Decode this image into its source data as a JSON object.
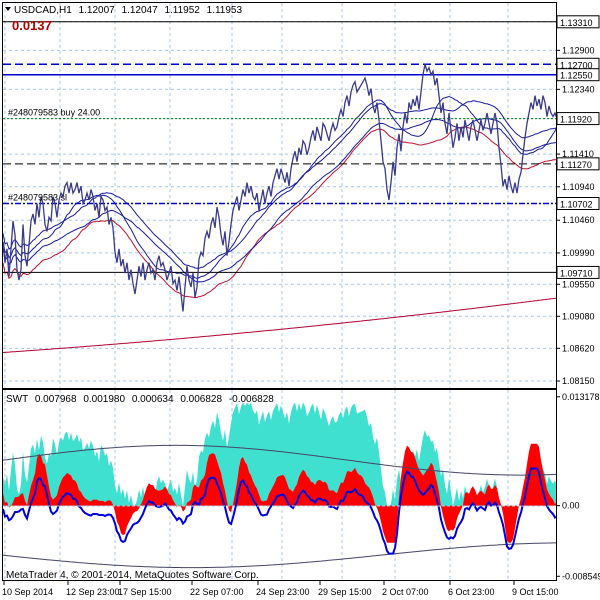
{
  "chart_data": [
    {
      "type": "line",
      "pane": "price",
      "header": {
        "symbol": "USDCAD,H1",
        "ohlc": [
          "1.12007",
          "1.12047",
          "1.11952",
          "1.11953"
        ]
      },
      "spread_label": "0.0137",
      "ylim": [
        1.0805,
        1.1358
      ],
      "yticks": [
        1.1331,
        1.129,
        1.1234,
        1.1192,
        1.1141,
        1.1094,
        1.1046,
        1.0999,
        1.0954,
        1.0908,
        1.0862,
        1.0815
      ],
      "ytick_labels": [
        "",
        "1.12900",
        "1.12340",
        "",
        "1.11410",
        "1.10940",
        "1.10460",
        "1.09990",
        "1.09550",
        "1.09080",
        "1.08620",
        "1.08150"
      ],
      "price_series": [
        [
          0,
          1.1015
        ],
        [
          2,
          1.0985
        ],
        [
          4,
          1.1005
        ],
        [
          6,
          1.0965
        ],
        [
          8,
          1.1005
        ],
        [
          10,
          1.1045
        ],
        [
          12,
          1.1025
        ],
        [
          14,
          1.0975
        ],
        [
          16,
          1.096
        ],
        [
          18,
          1.0975
        ],
        [
          20,
          1.104
        ],
        [
          22,
          1.0995
        ],
        [
          24,
          1.098
        ],
        [
          26,
          1.101
        ],
        [
          28,
          1.1045
        ],
        [
          30,
          1.1055
        ],
        [
          32,
          1.104
        ],
        [
          34,
          1.107
        ],
        [
          36,
          1.105
        ],
        [
          38,
          1.108
        ],
        [
          40,
          1.107
        ],
        [
          42,
          1.104
        ],
        [
          44,
          1.103
        ],
        [
          46,
          1.105
        ],
        [
          48,
          1.1045
        ],
        [
          50,
          1.108
        ],
        [
          52,
          1.107
        ],
        [
          54,
          1.105
        ],
        [
          56,
          1.1075
        ],
        [
          58,
          1.1085
        ],
        [
          60,
          1.108
        ],
        [
          62,
          1.1095
        ],
        [
          64,
          1.11
        ],
        [
          66,
          1.1085
        ],
        [
          68,
          1.11
        ],
        [
          70,
          1.1085
        ],
        [
          72,
          1.109
        ],
        [
          74,
          1.11
        ],
        [
          76,
          1.1085
        ],
        [
          78,
          1.1095
        ],
        [
          80,
          1.107
        ],
        [
          82,
          1.1075
        ],
        [
          84,
          1.1085
        ],
        [
          86,
          1.1075
        ],
        [
          88,
          1.109
        ],
        [
          90,
          1.108
        ],
        [
          92,
          1.106
        ],
        [
          94,
          1.107
        ],
        [
          96,
          1.105
        ],
        [
          98,
          1.108
        ],
        [
          100,
          1.1075
        ],
        [
          102,
          1.106
        ],
        [
          104,
          1.1065
        ],
        [
          106,
          1.104
        ],
        [
          108,
          1.105
        ],
        [
          110,
          1.1035
        ],
        [
          112,
          1.1
        ],
        [
          114,
          1.0985
        ],
        [
          116,
          1.1005
        ],
        [
          118,
          1.098
        ],
        [
          120,
          1.099
        ],
        [
          122,
          1.097
        ],
        [
          124,
          1.0985
        ],
        [
          126,
          1.096
        ],
        [
          128,
          1.0975
        ],
        [
          130,
          1.0955
        ],
        [
          132,
          1.094
        ],
        [
          134,
          1.096
        ],
        [
          136,
          1.098
        ],
        [
          138,
          1.0965
        ],
        [
          140,
          1.0985
        ],
        [
          142,
          1.096
        ],
        [
          144,
          1.0975
        ],
        [
          146,
          1.0985
        ],
        [
          148,
          1.097
        ],
        [
          150,
          1.0975
        ],
        [
          152,
          1.096
        ],
        [
          154,
          1.0985
        ],
        [
          156,
          1.0995
        ],
        [
          158,
          1.098
        ],
        [
          160,
          1.0985
        ],
        [
          162,
          1.0975
        ],
        [
          164,
          1.096
        ],
        [
          166,
          1.097
        ],
        [
          168,
          1.098
        ],
        [
          170,
          1.0955
        ],
        [
          172,
          1.096
        ],
        [
          174,
          1.0945
        ],
        [
          176,
          1.0965
        ],
        [
          178,
          1.094
        ],
        [
          180,
          1.0915
        ],
        [
          182,
          1.095
        ],
        [
          184,
          1.098
        ],
        [
          186,
          1.096
        ],
        [
          188,
          1.095
        ],
        [
          190,
          1.097
        ],
        [
          192,
          1.0935
        ],
        [
          194,
          1.095
        ],
        [
          196,
          1.099
        ],
        [
          198,
          1.1
        ],
        [
          200,
          1.0995
        ],
        [
          202,
          1.102
        ],
        [
          204,
          1.103
        ],
        [
          206,
          1.102
        ],
        [
          208,
          1.104
        ],
        [
          210,
          1.105
        ],
        [
          212,
          1.1035
        ],
        [
          214,
          1.1065
        ],
        [
          216,
          1.105
        ],
        [
          218,
          1.1025
        ],
        [
          220,
          1.101
        ],
        [
          222,
          1.103
        ],
        [
          224,
          1.0995
        ],
        [
          226,
          1.1015
        ],
        [
          228,
          1.104
        ],
        [
          230,
          1.106
        ],
        [
          232,
          1.107
        ],
        [
          234,
          1.108
        ],
        [
          236,
          1.106
        ],
        [
          238,
          1.1075
        ],
        [
          240,
          1.109
        ],
        [
          242,
          1.108
        ],
        [
          244,
          1.11
        ],
        [
          246,
          1.1085
        ],
        [
          248,
          1.1095
        ],
        [
          250,
          1.108
        ],
        [
          252,
          1.1075
        ],
        [
          254,
          1.1085
        ],
        [
          256,
          1.106
        ],
        [
          258,
          1.1075
        ],
        [
          260,
          1.109
        ],
        [
          262,
          1.107
        ],
        [
          264,
          1.1085
        ],
        [
          266,
          1.1095
        ],
        [
          268,
          1.108
        ],
        [
          270,
          1.11
        ],
        [
          272,
          1.111
        ],
        [
          274,
          1.112
        ],
        [
          276,
          1.1105
        ],
        [
          278,
          1.112
        ],
        [
          280,
          1.111
        ],
        [
          282,
          1.11
        ],
        [
          284,
          1.1115
        ],
        [
          286,
          1.1095
        ],
        [
          288,
          1.112
        ],
        [
          290,
          1.1135
        ],
        [
          292,
          1.1145
        ],
        [
          294,
          1.113
        ],
        [
          296,
          1.115
        ],
        [
          298,
          1.114
        ],
        [
          300,
          1.116
        ],
        [
          302,
          1.1155
        ],
        [
          304,
          1.114
        ],
        [
          306,
          1.115
        ],
        [
          308,
          1.1165
        ],
        [
          310,
          1.1175
        ],
        [
          312,
          1.116
        ],
        [
          314,
          1.118
        ],
        [
          316,
          1.117
        ],
        [
          318,
          1.116
        ],
        [
          320,
          1.1185
        ],
        [
          322,
          1.118
        ],
        [
          324,
          1.117
        ],
        [
          326,
          1.116
        ],
        [
          328,
          1.1175
        ],
        [
          330,
          1.1185
        ],
        [
          332,
          1.1175
        ],
        [
          334,
          1.118
        ],
        [
          336,
          1.1195
        ],
        [
          338,
          1.1205
        ],
        [
          340,
          1.1195
        ],
        [
          342,
          1.1215
        ],
        [
          344,
          1.1225
        ],
        [
          346,
          1.121
        ],
        [
          348,
          1.123
        ],
        [
          350,
          1.124
        ],
        [
          352,
          1.1245
        ],
        [
          354,
          1.123
        ],
        [
          356,
          1.1235
        ],
        [
          358,
          1.124
        ],
        [
          360,
          1.1245
        ],
        [
          362,
          1.125
        ],
        [
          364,
          1.124
        ],
        [
          366,
          1.1225
        ],
        [
          368,
          1.1235
        ],
        [
          370,
          1.121
        ],
        [
          372,
          1.12
        ],
        [
          374,
          1.1215
        ],
        [
          376,
          1.119
        ],
        [
          378,
          1.116
        ],
        [
          380,
          1.113
        ],
        [
          382,
          1.112
        ],
        [
          384,
          1.109
        ],
        [
          386,
          1.1075
        ],
        [
          388,
          1.11
        ],
        [
          390,
          1.113
        ],
        [
          392,
          1.111
        ],
        [
          394,
          1.115
        ],
        [
          396,
          1.117
        ],
        [
          398,
          1.1145
        ],
        [
          400,
          1.118
        ],
        [
          402,
          1.12
        ],
        [
          404,
          1.1185
        ],
        [
          406,
          1.1215
        ],
        [
          408,
          1.1205
        ],
        [
          410,
          1.122
        ],
        [
          412,
          1.121
        ],
        [
          414,
          1.1225
        ],
        [
          416,
          1.1205
        ],
        [
          418,
          1.123
        ],
        [
          420,
          1.1255
        ],
        [
          422,
          1.127
        ],
        [
          424,
          1.126
        ],
        [
          426,
          1.1265
        ],
        [
          428,
          1.1255
        ],
        [
          430,
          1.126
        ],
        [
          432,
          1.124
        ],
        [
          434,
          1.125
        ],
        [
          436,
          1.1225
        ],
        [
          438,
          1.12
        ],
        [
          440,
          1.1215
        ],
        [
          442,
          1.1185
        ],
        [
          444,
          1.117
        ],
        [
          446,
          1.12
        ],
        [
          448,
          1.1175
        ],
        [
          450,
          1.115
        ],
        [
          452,
          1.1165
        ],
        [
          454,
          1.1185
        ],
        [
          456,
          1.116
        ],
        [
          458,
          1.118
        ],
        [
          460,
          1.1165
        ],
        [
          462,
          1.119
        ],
        [
          464,
          1.1175
        ],
        [
          466,
          1.116
        ],
        [
          468,
          1.118
        ],
        [
          470,
          1.119
        ],
        [
          472,
          1.1175
        ],
        [
          474,
          1.116
        ],
        [
          476,
          1.1175
        ],
        [
          478,
          1.119
        ],
        [
          480,
          1.1175
        ],
        [
          482,
          1.1185
        ],
        [
          484,
          1.12
        ],
        [
          486,
          1.1185
        ],
        [
          488,
          1.117
        ],
        [
          490,
          1.1185
        ],
        [
          492,
          1.12
        ],
        [
          494,
          1.1185
        ],
        [
          496,
          1.115
        ],
        [
          498,
          1.1125
        ],
        [
          500,
          1.1095
        ],
        [
          502,
          1.1105
        ],
        [
          504,
          1.109
        ],
        [
          506,
          1.111
        ],
        [
          508,
          1.1095
        ],
        [
          510,
          1.1085
        ],
        [
          512,
          1.11
        ],
        [
          514,
          1.1085
        ],
        [
          516,
          1.1105
        ],
        [
          518,
          1.1115
        ],
        [
          520,
          1.114
        ],
        [
          522,
          1.1165
        ],
        [
          524,
          1.1185
        ],
        [
          526,
          1.12
        ],
        [
          528,
          1.1215
        ],
        [
          530,
          1.1205
        ],
        [
          532,
          1.1225
        ],
        [
          534,
          1.121
        ],
        [
          536,
          1.122
        ],
        [
          538,
          1.1205
        ],
        [
          540,
          1.1225
        ],
        [
          542,
          1.1215
        ],
        [
          544,
          1.1195
        ],
        [
          546,
          1.121
        ],
        [
          548,
          1.12
        ],
        [
          550,
          1.1195
        ],
        [
          552,
          1.12
        ],
        [
          553,
          1.1195
        ]
      ],
      "levels": [
        {
          "price": 1.1331,
          "label": "1.13310",
          "color": "#000000",
          "style": "solid"
        },
        {
          "price": 1.127,
          "label": "1.12700",
          "color": "#0000cc",
          "style": "dashed"
        },
        {
          "price": 1.1255,
          "label": "1.12550",
          "color": "#0000cc",
          "style": "solid"
        },
        {
          "price": 1.1192,
          "label": "1.11920",
          "color": "#008000",
          "style": "dotted"
        },
        {
          "price": 1.1127,
          "label": "1.11270",
          "color": "#000000",
          "style": "dashed"
        },
        {
          "price": 1.107,
          "label": "1.10702",
          "color": "#0000cc",
          "style": "dashdot"
        },
        {
          "price": 1.0971,
          "label": "1.09710",
          "color": "#000000",
          "style": "solid"
        }
      ],
      "order_labels": [
        {
          "text": "#248079583 buy 24.00",
          "price": 1.1192
        },
        {
          "text": "#248079583 sl",
          "price": 1.107
        }
      ]
    },
    {
      "type": "area",
      "pane": "indicator",
      "header": {
        "name": "SWT",
        "values": [
          "0.007968",
          "0.001980",
          "0.000634",
          "0.006828",
          "-0.006828"
        ]
      },
      "ylim": [
        -0.009,
        0.014
      ],
      "ytick_labels": [
        "0.013178",
        "0.00",
        "-0.008549"
      ],
      "ytick_values": [
        0.013178,
        0.0,
        -0.008549
      ]
    }
  ],
  "x_axis_labels": [
    "10 Sep 2014",
    "12 Sep 23:00",
    "17 Sep 15:00",
    "22 Sep 07:00",
    "24 Sep 23:00",
    "29 Sep 15:00",
    "2 Oct 07:00",
    "6 Oct 23:00",
    "9 Oct 15:00"
  ],
  "footer": "MetaTrader 4, © 2001-2014, MetaQuotes Software Corp.",
  "colors": {
    "price_line": "#3a3a8a",
    "ma_blue": "#1a1aa0",
    "ma_red": "#c01030",
    "ma_red_slow": "#b00030",
    "swt_teal": "#40e0d0",
    "swt_red": "#ff0000",
    "swt_blue": "#0000dd",
    "grid": "#a8c8e8",
    "spread_label": "#b00000"
  }
}
